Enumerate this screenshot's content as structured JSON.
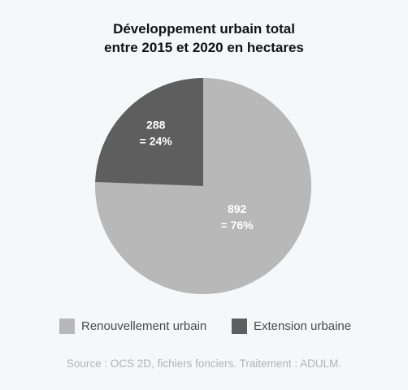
{
  "chart_data": {
    "type": "pie",
    "title": [
      "Développement urbain total",
      "entre 2015 et 2020 en hectares"
    ],
    "slices": [
      {
        "name": "Renouvellement urbain",
        "value": 892,
        "label_value": "892",
        "label_pct": "= 76%",
        "color": "#b8b8b8"
      },
      {
        "name": "Extension urbaine",
        "value": 288,
        "label_value": "288",
        "label_pct": "= 24%",
        "color": "#5e5e5e"
      }
    ],
    "legend_placement": "bottom",
    "source": "Source : OCS 2D, fichiers fonciers. Traitement : ADULM."
  }
}
